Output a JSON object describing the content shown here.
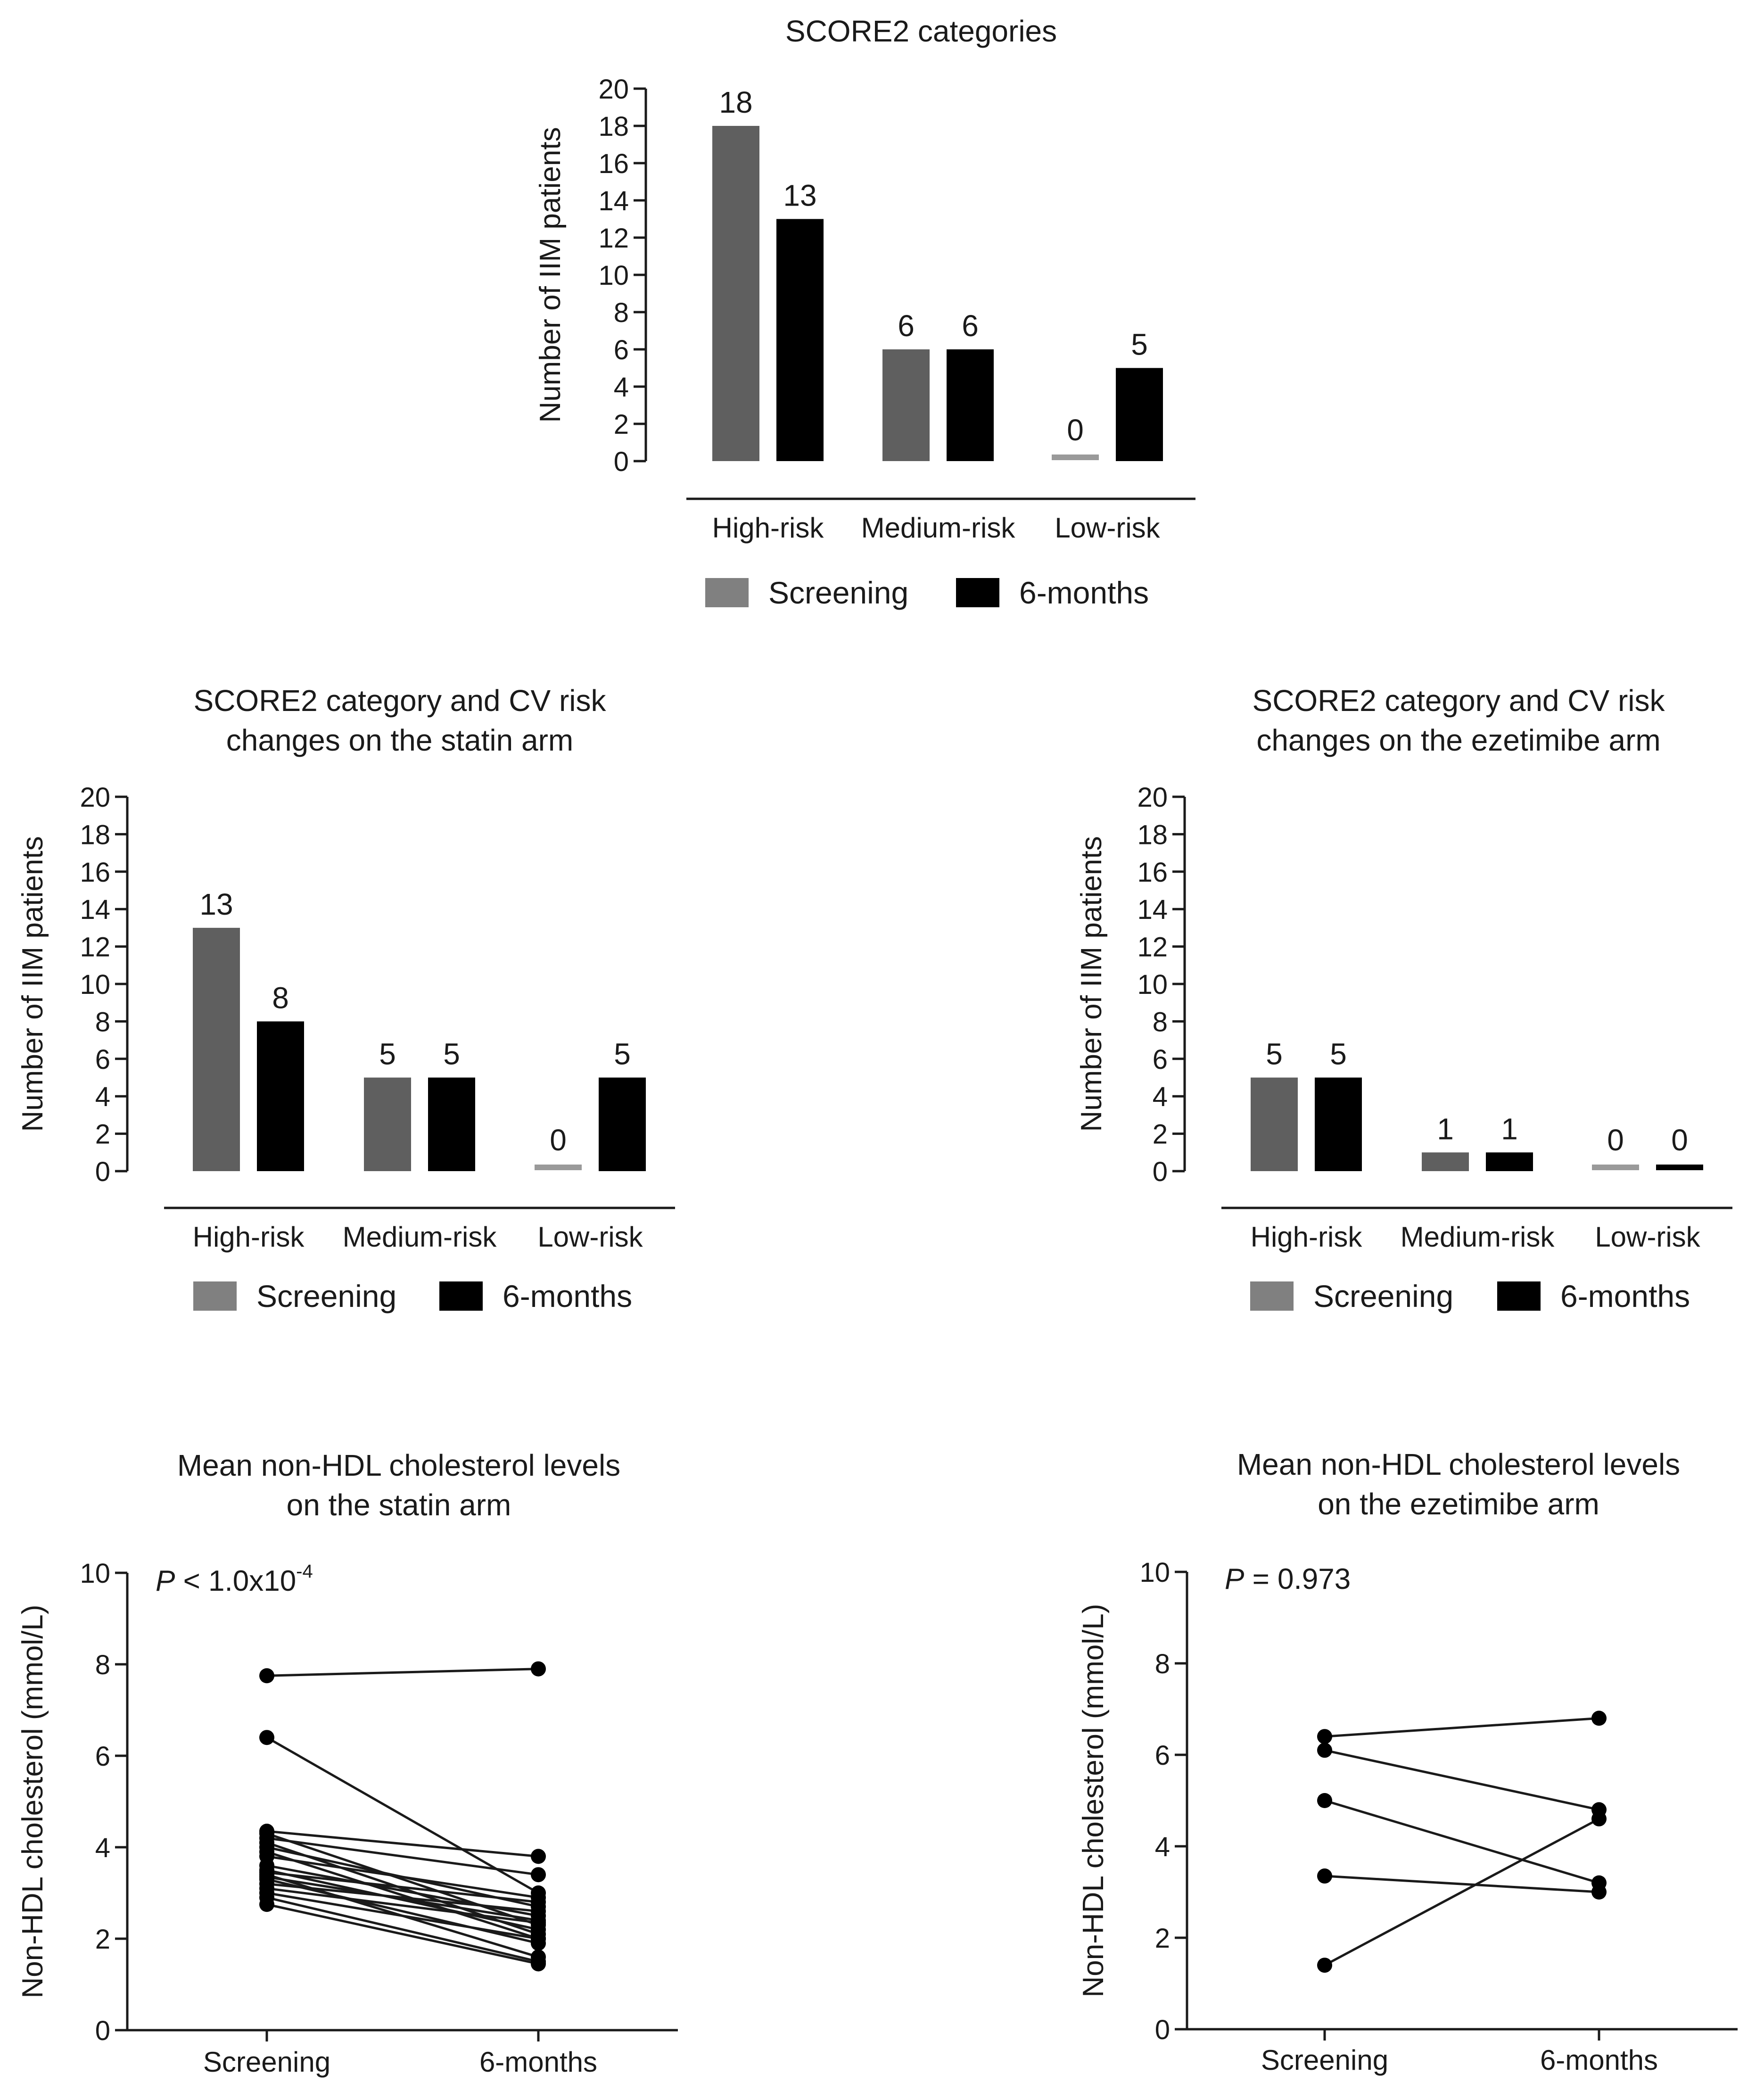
{
  "chart_data": [
    {
      "id": "c1",
      "type": "bar",
      "title": [
        "SCORE2 categories"
      ],
      "ylabel": "Number of IIM patients",
      "ylim": [
        0,
        20
      ],
      "yticks": [
        0,
        2,
        4,
        6,
        8,
        10,
        12,
        14,
        16,
        18,
        20
      ],
      "categories": [
        "High-risk",
        "Medium-risk",
        "Low-risk"
      ],
      "series": [
        {
          "name": "Screening",
          "color": "#5f5f5f",
          "zero_color": "#9a9a9a",
          "values": [
            18,
            6,
            0
          ]
        },
        {
          "name": "6-months",
          "color": "#000000",
          "zero_color": "#000000",
          "values": [
            13,
            6,
            5
          ]
        }
      ],
      "legend": "bottom"
    },
    {
      "id": "c2",
      "type": "bar",
      "title": [
        "SCORE2 category and CV risk",
        "changes on the statin arm"
      ],
      "ylabel": "Number of IIM patients",
      "ylim": [
        0,
        20
      ],
      "yticks": [
        0,
        2,
        4,
        6,
        8,
        10,
        12,
        14,
        16,
        18,
        20
      ],
      "categories": [
        "High-risk",
        "Medium-risk",
        "Low-risk"
      ],
      "series": [
        {
          "name": "Screening",
          "color": "#5f5f5f",
          "zero_color": "#9a9a9a",
          "values": [
            13,
            5,
            0
          ]
        },
        {
          "name": "6-months",
          "color": "#000000",
          "zero_color": "#000000",
          "values": [
            8,
            5,
            5
          ]
        }
      ],
      "legend": "bottom"
    },
    {
      "id": "c3",
      "type": "bar",
      "title": [
        "SCORE2 category and CV risk",
        "changes on the ezetimibe arm"
      ],
      "ylabel": "Number of IIM patients",
      "ylim": [
        0,
        20
      ],
      "yticks": [
        0,
        2,
        4,
        6,
        8,
        10,
        12,
        14,
        16,
        18,
        20
      ],
      "categories": [
        "High-risk",
        "Medium-risk",
        "Low-risk"
      ],
      "series": [
        {
          "name": "Screening",
          "color": "#5f5f5f",
          "zero_color": "#9a9a9a",
          "values": [
            5,
            1,
            0
          ]
        },
        {
          "name": "6-months",
          "color": "#000000",
          "zero_color": "#000000",
          "values": [
            5,
            1,
            0
          ]
        }
      ],
      "legend": "bottom"
    },
    {
      "id": "c4",
      "type": "line",
      "subtype": "paired-points",
      "title": [
        "Mean non-HDL cholesterol levels",
        "on the statin arm"
      ],
      "ylabel": "Non-HDL cholesterol (mmol/L)",
      "ylim": [
        0,
        10
      ],
      "yticks": [
        0,
        2,
        4,
        6,
        8,
        10
      ],
      "categories": [
        "Screening",
        "6-months"
      ],
      "annotation": {
        "p_symbol": "P",
        "p_text": " < 1.0x10",
        "p_exp": "-4"
      },
      "pairs": [
        [
          7.75,
          7.9
        ],
        [
          6.4,
          3.0
        ],
        [
          4.35,
          3.8
        ],
        [
          4.3,
          2.3
        ],
        [
          4.2,
          3.4
        ],
        [
          4.1,
          2.1
        ],
        [
          4.0,
          2.7
        ],
        [
          3.9,
          2.0
        ],
        [
          3.8,
          2.9
        ],
        [
          3.6,
          2.5
        ],
        [
          3.5,
          2.2
        ],
        [
          3.45,
          2.8
        ],
        [
          3.4,
          1.6
        ],
        [
          3.35,
          2.4
        ],
        [
          3.3,
          1.9
        ],
        [
          3.2,
          2.6
        ],
        [
          3.1,
          2.35
        ],
        [
          3.0,
          2.0
        ],
        [
          2.9,
          1.5
        ],
        [
          2.75,
          1.45
        ]
      ]
    },
    {
      "id": "c5",
      "type": "line",
      "subtype": "paired-points",
      "title": [
        "Mean non-HDL cholesterol levels",
        "on the ezetimibe arm"
      ],
      "ylabel": "Non-HDL cholesterol (mmol/L)",
      "ylim": [
        0,
        10
      ],
      "yticks": [
        0,
        2,
        4,
        6,
        8,
        10
      ],
      "categories": [
        "Screening",
        "6-months"
      ],
      "annotation": {
        "p_symbol": "P",
        "p_text": " = 0.973",
        "p_exp": ""
      },
      "pairs": [
        [
          6.4,
          6.8
        ],
        [
          6.1,
          4.8
        ],
        [
          5.0,
          3.2
        ],
        [
          3.35,
          3.0
        ],
        [
          1.4,
          4.6
        ]
      ]
    }
  ]
}
